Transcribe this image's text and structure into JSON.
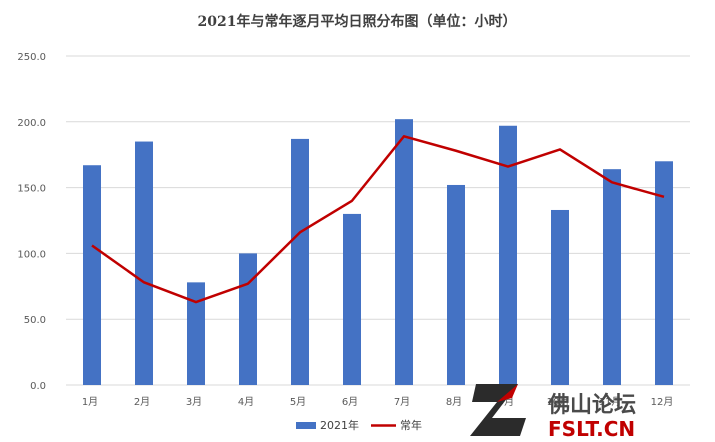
{
  "chart_data": {
    "type": "bar",
    "title": "2021年与常年逐月平均日照分布图（单位：小时）",
    "categories": [
      "1月",
      "2月",
      "3月",
      "4月",
      "5月",
      "6月",
      "7月",
      "8月",
      "9月",
      "10月",
      "11月",
      "12月"
    ],
    "series": [
      {
        "name": "2021年",
        "type": "bar",
        "color": "#4472c4",
        "values": [
          167,
          185,
          78,
          100,
          187,
          130,
          202,
          152,
          197,
          133,
          164,
          170
        ]
      },
      {
        "name": "常年",
        "type": "line",
        "color": "#c00000",
        "values": [
          106,
          78,
          63,
          77,
          116,
          140,
          189,
          178,
          166,
          179,
          154,
          143
        ]
      }
    ],
    "ylim": [
      0,
      250
    ],
    "yticks": [
      "0.0",
      "50.0",
      "100.0",
      "150.0",
      "200.0",
      "250.0"
    ],
    "grid": true,
    "legend_position": "bottom"
  },
  "watermark": {
    "logo_text": "佛山论坛",
    "url_text": "FSLT.CN"
  }
}
